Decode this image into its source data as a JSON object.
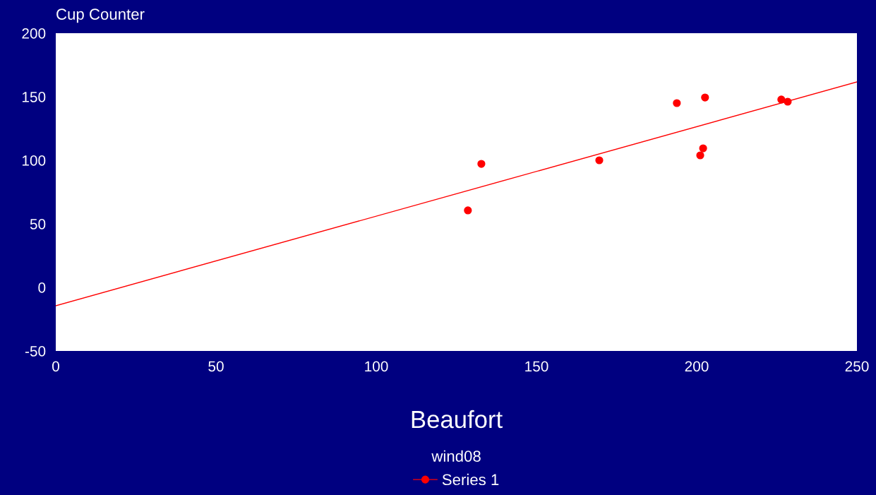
{
  "chart_data": {
    "type": "scatter",
    "title": "wind08",
    "xlabel": "Beaufort",
    "ylabel": "Cup Counter",
    "series": [
      {
        "name": "Series 1",
        "marker": "circle",
        "color": "#ff0000",
        "x": [
          128.6,
          132.8,
          169.6,
          193.8,
          202.6,
          202.0,
          201.1,
          226.4,
          228.4
        ],
        "values": [
          60.6,
          97.2,
          100,
          145,
          149.4,
          109.4,
          103.9,
          147.8,
          146.1
        ]
      },
      {
        "type": "line",
        "marker": "none",
        "color": "#ff0000",
        "x": [
          0,
          250
        ],
        "values": [
          -14.4,
          161.7
        ]
      }
    ],
    "xlim": [
      0,
      250
    ],
    "xticks": [
      0,
      50,
      100,
      150,
      200,
      250
    ],
    "ylim": [
      -50,
      200
    ],
    "yticks": [
      -50,
      0,
      50,
      100,
      150,
      200
    ],
    "grid": false,
    "legend": "bottom"
  }
}
